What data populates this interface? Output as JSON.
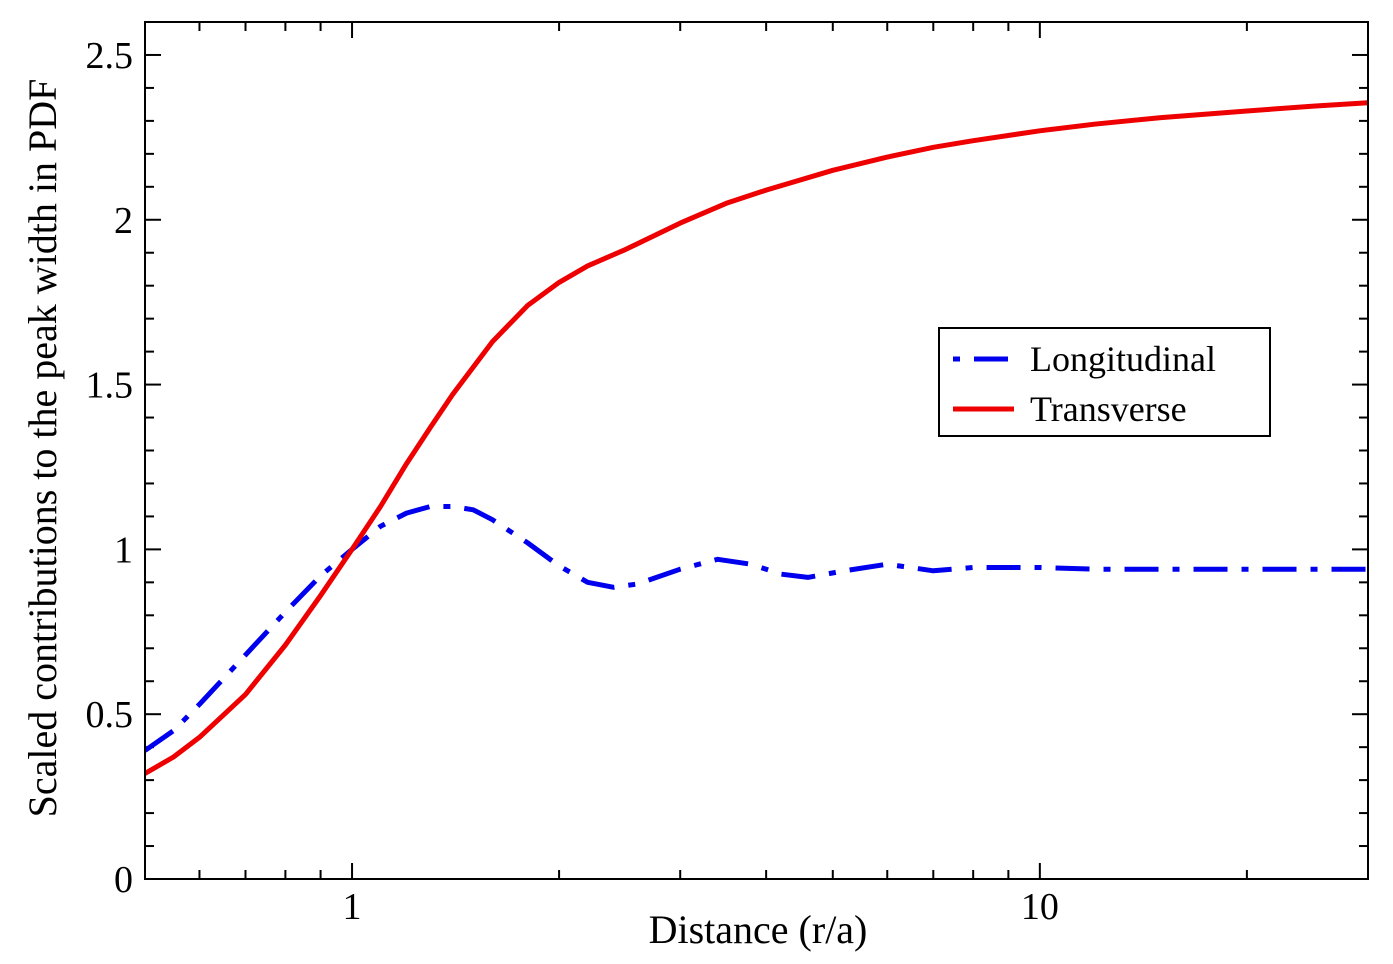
{
  "chart_data": {
    "type": "line",
    "title": "",
    "xlabel": "Distance (r/a)",
    "ylabel": "Scaled contributions to the peak width in PDF",
    "xscale": "log",
    "xlim": [
      0.5,
      30
    ],
    "ylim": [
      0,
      2.6
    ],
    "x_ticks": [
      {
        "value": 1,
        "label": "1"
      },
      {
        "value": 10,
        "label": "10"
      }
    ],
    "y_ticks": [
      {
        "value": 0,
        "label": "0"
      },
      {
        "value": 0.5,
        "label": "0.5"
      },
      {
        "value": 1,
        "label": "1"
      },
      {
        "value": 1.5,
        "label": "1.5"
      },
      {
        "value": 2,
        "label": "2"
      },
      {
        "value": 2.5,
        "label": "2.5"
      }
    ],
    "legend_position": "center-right",
    "series": [
      {
        "name": "Longitudinal",
        "color": "#0000ee",
        "style": "dash-dot",
        "points": [
          [
            0.5,
            0.39
          ],
          [
            0.55,
            0.45
          ],
          [
            0.6,
            0.53
          ],
          [
            0.7,
            0.68
          ],
          [
            0.8,
            0.81
          ],
          [
            0.9,
            0.92
          ],
          [
            1.0,
            1.0
          ],
          [
            1.1,
            1.07
          ],
          [
            1.2,
            1.11
          ],
          [
            1.3,
            1.13
          ],
          [
            1.4,
            1.13
          ],
          [
            1.5,
            1.12
          ],
          [
            1.6,
            1.09
          ],
          [
            1.8,
            1.02
          ],
          [
            2.0,
            0.95
          ],
          [
            2.2,
            0.9
          ],
          [
            2.4,
            0.885
          ],
          [
            2.6,
            0.895
          ],
          [
            3.0,
            0.94
          ],
          [
            3.4,
            0.97
          ],
          [
            3.8,
            0.955
          ],
          [
            4.2,
            0.925
          ],
          [
            4.6,
            0.915
          ],
          [
            5.2,
            0.935
          ],
          [
            6.0,
            0.955
          ],
          [
            7.0,
            0.935
          ],
          [
            8.0,
            0.945
          ],
          [
            10,
            0.945
          ],
          [
            12,
            0.94
          ],
          [
            15,
            0.94
          ],
          [
            20,
            0.94
          ],
          [
            25,
            0.94
          ],
          [
            30,
            0.94
          ]
        ]
      },
      {
        "name": "Transverse",
        "color": "#ee0000",
        "style": "solid",
        "points": [
          [
            0.5,
            0.32
          ],
          [
            0.55,
            0.37
          ],
          [
            0.6,
            0.43
          ],
          [
            0.7,
            0.56
          ],
          [
            0.8,
            0.71
          ],
          [
            0.9,
            0.86
          ],
          [
            1.0,
            1.0
          ],
          [
            1.1,
            1.13
          ],
          [
            1.2,
            1.26
          ],
          [
            1.3,
            1.37
          ],
          [
            1.4,
            1.47
          ],
          [
            1.6,
            1.63
          ],
          [
            1.8,
            1.74
          ],
          [
            2.0,
            1.81
          ],
          [
            2.2,
            1.86
          ],
          [
            2.5,
            1.91
          ],
          [
            3.0,
            1.99
          ],
          [
            3.5,
            2.05
          ],
          [
            4.0,
            2.09
          ],
          [
            5.0,
            2.15
          ],
          [
            6.0,
            2.19
          ],
          [
            7.0,
            2.22
          ],
          [
            8.0,
            2.24
          ],
          [
            10,
            2.27
          ],
          [
            12,
            2.29
          ],
          [
            15,
            2.31
          ],
          [
            20,
            2.33
          ],
          [
            25,
            2.345
          ],
          [
            30,
            2.355
          ]
        ]
      }
    ]
  }
}
